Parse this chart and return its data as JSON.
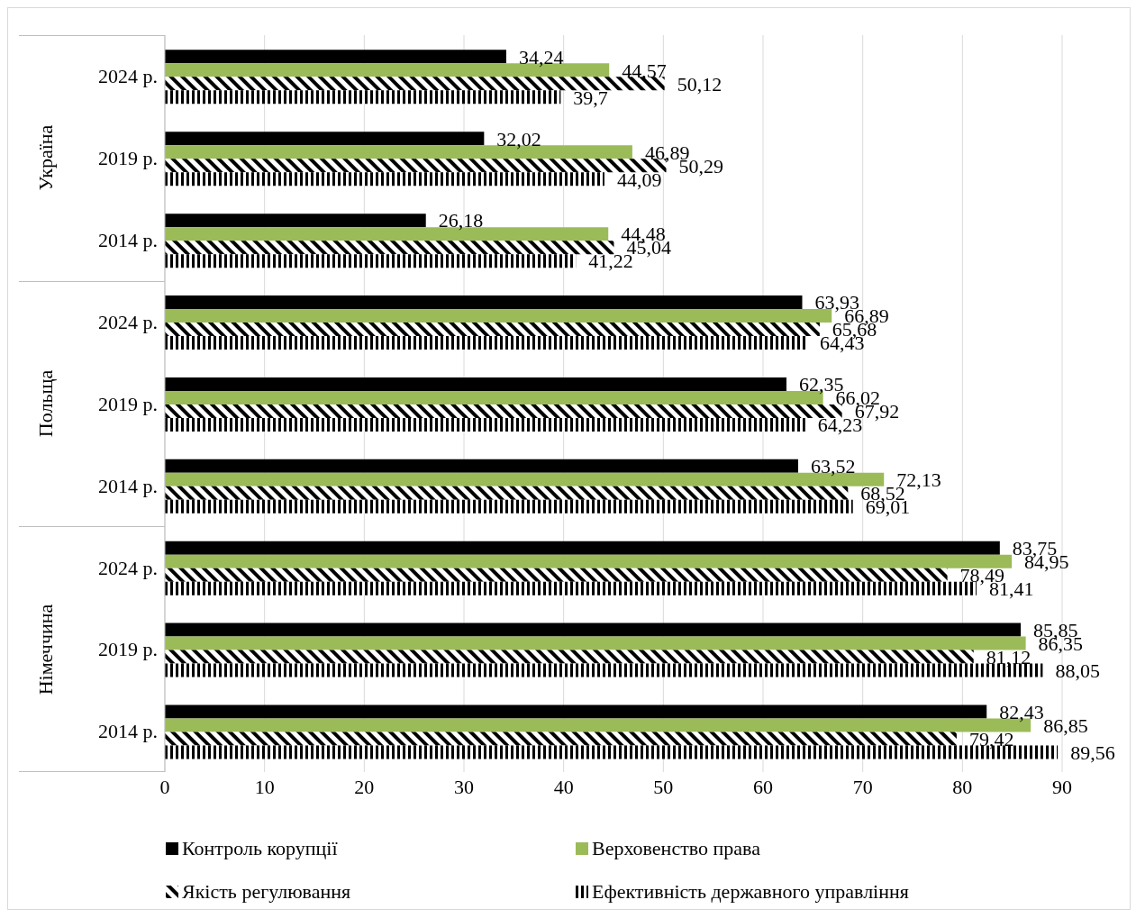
{
  "chart_data": {
    "type": "bar",
    "orientation": "horizontal",
    "categories": [
      "2024 р.",
      "2019 р.",
      "2014 р.",
      "2024 р.",
      "2019 р.",
      "2014 р.",
      "2024 р.",
      "2019 р.",
      "2014 р."
    ],
    "annotations": [
      "Україна",
      "Польща",
      "Німеччина"
    ],
    "series": [
      {
        "name": "Контроль корупції",
        "color": "#000000",
        "values": [
          34.24,
          32.02,
          26.18,
          63.93,
          62.35,
          63.52,
          83.75,
          85.85,
          82.43
        ],
        "value_labels": [
          "34,24",
          "32,02",
          "26,18",
          "63,93",
          "62,35",
          "63,52",
          "83,75",
          "85,85",
          "82,43"
        ]
      },
      {
        "name": "Верховенство права",
        "color": "#9bbb59",
        "values": [
          44.57,
          46.89,
          44.48,
          66.89,
          66.02,
          72.13,
          84.95,
          86.35,
          86.85
        ],
        "value_labels": [
          "44,57",
          "46,89",
          "44,48",
          "66,89",
          "66,02",
          "72,13",
          "84,95",
          "86,35",
          "86,85"
        ]
      },
      {
        "name": "Якість регулювання",
        "color": "#000000",
        "values": [
          50.12,
          50.29,
          45.04,
          65.68,
          67.92,
          68.52,
          78.49,
          81.12,
          79.42
        ],
        "value_labels": [
          "50,12",
          "50,29",
          "45,04",
          "65,68",
          "67,92",
          "68,52",
          "78,49",
          "81,12",
          "79,42"
        ]
      },
      {
        "name": "Ефективність державного управління",
        "color": "#000000",
        "values": [
          39.7,
          44.09,
          41.22,
          64.43,
          64.23,
          69.01,
          81.41,
          88.05,
          89.56
        ],
        "value_labels": [
          "39,7",
          "44,09",
          "41,22",
          "64,43",
          "64,23",
          "69,01",
          "81,41",
          "88,05",
          "89,56"
        ]
      }
    ],
    "xlim": [
      0,
      90
    ],
    "xticks": [
      0,
      10,
      20,
      30,
      40,
      50,
      60,
      70,
      80,
      90
    ],
    "grid": "x",
    "legend": "bottom"
  }
}
